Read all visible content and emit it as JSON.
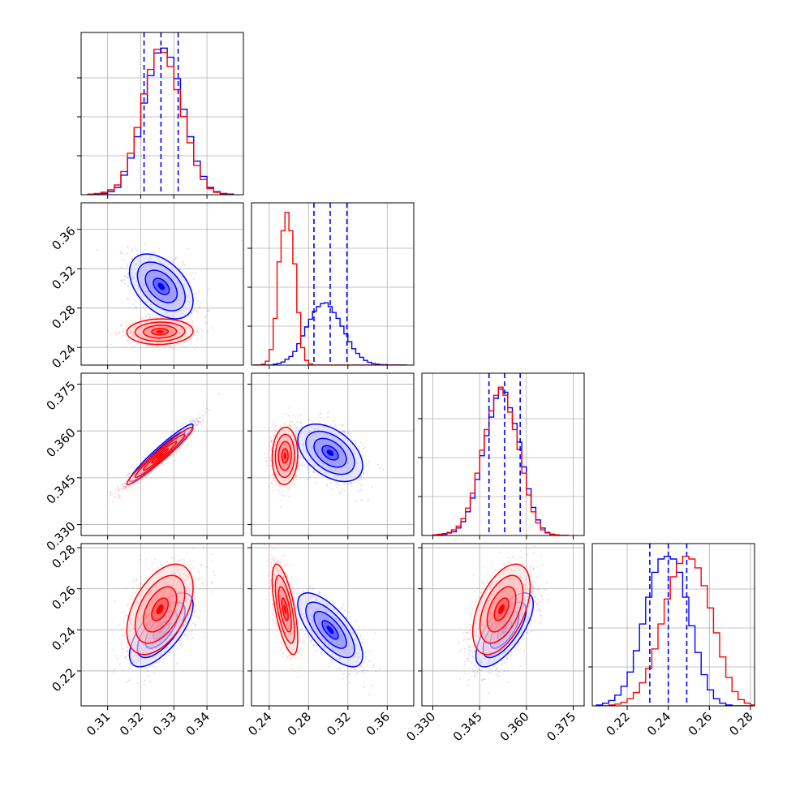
{
  "chart_data": {
    "type": "corner",
    "grid": true,
    "series": [
      {
        "name": "",
        "color": "#0000ff"
      },
      {
        "name": "",
        "color": "#ff0000"
      }
    ],
    "parameters": [
      {
        "id": "p0",
        "range": [
          0.302,
          0.351
        ],
        "ticks": [
          0.31,
          0.32,
          0.33,
          0.34
        ],
        "tick_labels": [
          "0.31",
          "0.32",
          "0.33",
          "0.34"
        ]
      },
      {
        "id": "p1",
        "range": [
          0.222,
          0.387
        ],
        "ticks": [
          0.24,
          0.28,
          0.32,
          0.36
        ],
        "tick_labels": [
          "0.24",
          "0.28",
          "0.32",
          "0.36"
        ]
      },
      {
        "id": "p2",
        "range": [
          0.3265,
          0.3785
        ],
        "ticks": [
          0.33,
          0.345,
          0.36,
          0.375
        ],
        "tick_labels": [
          "0.330",
          "0.345",
          "0.360",
          "0.375"
        ]
      },
      {
        "id": "p3",
        "range": [
          0.203,
          0.282
        ],
        "ticks": [
          0.22,
          0.24,
          0.26,
          0.28
        ],
        "tick_labels": [
          "0.22",
          "0.24",
          "0.26",
          "0.28"
        ]
      }
    ],
    "quantiles": [
      {
        "param": "p0",
        "values": [
          0.321,
          0.3261,
          0.3313
        ],
        "color": "#0000ff"
      },
      {
        "param": "p1",
        "values": [
          0.2855,
          0.302,
          0.319
        ],
        "color": "#0000ff"
      },
      {
        "param": "p2",
        "values": [
          0.348,
          0.353,
          0.358
        ],
        "color": "#0000ff"
      },
      {
        "param": "p3",
        "values": [
          0.231,
          0.24,
          0.249
        ],
        "color": "#0000ff"
      }
    ],
    "histograms": {
      "p0": {
        "edges": [
          0.304,
          0.306,
          0.308,
          0.31,
          0.312,
          0.314,
          0.316,
          0.318,
          0.32,
          0.322,
          0.324,
          0.326,
          0.328,
          0.33,
          0.332,
          0.334,
          0.336,
          0.338,
          0.34,
          0.342,
          0.344,
          0.346,
          0.348
        ],
        "blue": [
          0,
          1,
          2,
          5,
          12,
          32,
          60,
          95,
          150,
          195,
          232,
          240,
          225,
          190,
          140,
          95,
          55,
          30,
          12,
          5,
          2,
          1
        ],
        "red": [
          1,
          2,
          4,
          8,
          16,
          38,
          68,
          110,
          165,
          205,
          238,
          233,
          210,
          172,
          128,
          85,
          48,
          25,
          10,
          4,
          1,
          0
        ],
        "ymax": 255
      },
      "p1": {
        "edges": [
          0.224,
          0.228,
          0.232,
          0.236,
          0.24,
          0.244,
          0.248,
          0.252,
          0.256,
          0.26,
          0.264,
          0.268,
          0.272,
          0.276,
          0.28,
          0.284,
          0.288,
          0.292,
          0.296,
          0.3,
          0.304,
          0.308,
          0.312,
          0.316,
          0.32,
          0.324,
          0.328,
          0.332,
          0.336,
          0.34,
          0.344,
          0.348,
          0.352,
          0.356,
          0.36,
          0.364,
          0.368,
          0.372,
          0.376,
          0.38
        ],
        "blue": [
          0,
          0,
          0,
          0,
          0,
          2,
          4,
          8,
          15,
          22,
          35,
          55,
          75,
          98,
          118,
          138,
          150,
          158,
          160,
          150,
          135,
          120,
          100,
          80,
          60,
          42,
          30,
          20,
          12,
          7,
          4,
          2,
          1,
          1,
          0,
          0,
          0,
          0,
          0
        ],
        "red": [
          0,
          0,
          2,
          10,
          40,
          120,
          265,
          345,
          392,
          345,
          260,
          135,
          45,
          12,
          3,
          0,
          0,
          0,
          0,
          0,
          0,
          0,
          0,
          0,
          0,
          0,
          0,
          0,
          0,
          0,
          0,
          0,
          0,
          0,
          0,
          0,
          0,
          0,
          0
        ],
        "ymax": 400
      },
      "p2": {
        "edges": [
          0.33,
          0.3315,
          0.333,
          0.3345,
          0.336,
          0.3375,
          0.339,
          0.3405,
          0.342,
          0.3435,
          0.345,
          0.3465,
          0.348,
          0.3495,
          0.351,
          0.3525,
          0.354,
          0.3555,
          0.357,
          0.3585,
          0.36,
          0.3615,
          0.363,
          0.3645,
          0.366,
          0.3675,
          0.369,
          0.3705,
          0.372,
          0.3735
        ],
        "blue": [
          0,
          1,
          2,
          4,
          6,
          12,
          22,
          38,
          60,
          90,
          128,
          160,
          190,
          220,
          235,
          230,
          205,
          180,
          150,
          110,
          75,
          45,
          25,
          12,
          5,
          2,
          1,
          0,
          0
        ],
        "red": [
          1,
          2,
          3,
          5,
          9,
          15,
          27,
          44,
          68,
          100,
          137,
          170,
          200,
          225,
          238,
          225,
          198,
          170,
          138,
          100,
          65,
          38,
          20,
          9,
          4,
          2,
          1,
          0,
          0
        ],
        "ymax": 250
      },
      "p3": {
        "edges": [
          0.205,
          0.208,
          0.211,
          0.214,
          0.217,
          0.22,
          0.223,
          0.226,
          0.229,
          0.232,
          0.235,
          0.238,
          0.241,
          0.244,
          0.247,
          0.25,
          0.253,
          0.256,
          0.259,
          0.262,
          0.265,
          0.268,
          0.271,
          0.274,
          0.277,
          0.28,
          0.283
        ],
        "blue": [
          1,
          3,
          6,
          12,
          22,
          38,
          62,
          92,
          122,
          150,
          165,
          168,
          165,
          150,
          122,
          90,
          60,
          35,
          18,
          8,
          3,
          1,
          0,
          0,
          0,
          0
        ],
        "red": [
          0,
          0,
          1,
          2,
          4,
          8,
          15,
          26,
          42,
          64,
          92,
          120,
          145,
          160,
          168,
          165,
          155,
          135,
          110,
          82,
          55,
          32,
          16,
          7,
          3,
          1
        ],
        "ymax": 175
      }
    },
    "distributions_2d": {
      "blue": {
        "mean": [
          0.3262,
          0.302,
          0.353,
          0.24
        ],
        "sd": [
          0.0048,
          0.0165,
          0.0046,
          0.009
        ],
        "corr": [
          [
            1.0,
            -0.45,
            0.96,
            0.68
          ],
          [
            -0.45,
            1.0,
            -0.45,
            -0.7
          ],
          [
            0.96,
            -0.45,
            1.0,
            0.7
          ],
          [
            0.68,
            -0.7,
            0.7,
            1.0
          ]
        ]
      },
      "red": {
        "mean": [
          0.3258,
          0.256,
          0.352,
          0.25
        ],
        "sd": [
          0.005,
          0.0065,
          0.0046,
          0.011
        ],
        "corr": [
          [
            1.0,
            0.05,
            0.97,
            0.48
          ],
          [
            0.05,
            1.0,
            0.05,
            -0.65
          ],
          [
            0.97,
            0.05,
            1.0,
            0.5
          ],
          [
            0.48,
            -0.65,
            0.5,
            1.0
          ]
        ]
      }
    },
    "contour_levels_sigma": [
      0.5,
      1.0,
      1.5,
      2.0
    ]
  }
}
